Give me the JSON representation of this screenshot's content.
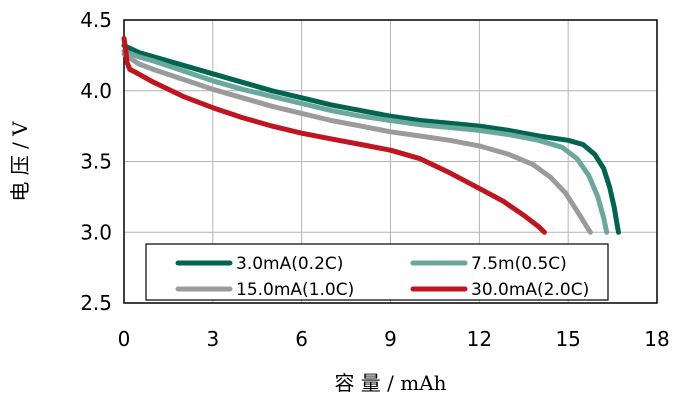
{
  "chart_data": {
    "type": "line",
    "xlabel": "容 量 / mAh",
    "ylabel": "电 压 / V",
    "xlim": [
      0,
      18
    ],
    "ylim": [
      2.5,
      4.5
    ],
    "xticks": [
      "0",
      "3",
      "6",
      "9",
      "12",
      "15",
      "18"
    ],
    "yticks": [
      "2.5",
      "3.0",
      "3.5",
      "4.0",
      "4.5"
    ],
    "grid": true,
    "legend": "bottom-inside",
    "series": [
      {
        "name": "3.0mA(0.2C)",
        "color": "#006451",
        "x": [
          0,
          0.5,
          1,
          2,
          3,
          4,
          5,
          6,
          7,
          8,
          9,
          10,
          11,
          12,
          13,
          14,
          15,
          15.5,
          15.9,
          16.2,
          16.4,
          16.55,
          16.65,
          16.7
        ],
        "y": [
          4.32,
          4.27,
          4.24,
          4.18,
          4.12,
          4.06,
          4.0,
          3.95,
          3.9,
          3.86,
          3.82,
          3.79,
          3.77,
          3.75,
          3.72,
          3.68,
          3.65,
          3.62,
          3.55,
          3.45,
          3.32,
          3.18,
          3.06,
          3.0
        ]
      },
      {
        "name": "7.5m(0.5C)",
        "color": "#6aa89b",
        "x": [
          0,
          0.5,
          1,
          2,
          3,
          4,
          5,
          6,
          7,
          8,
          9,
          10,
          11,
          12,
          13,
          14,
          14.8,
          15.3,
          15.7,
          16.0,
          16.2,
          16.3
        ],
        "y": [
          4.28,
          4.24,
          4.21,
          4.14,
          4.07,
          4.01,
          3.96,
          3.91,
          3.86,
          3.82,
          3.79,
          3.76,
          3.74,
          3.72,
          3.69,
          3.65,
          3.6,
          3.52,
          3.4,
          3.25,
          3.1,
          3.0
        ]
      },
      {
        "name": "15.0mA(1.0C)",
        "color": "#9b9b9b",
        "x": [
          0,
          0.5,
          1,
          2,
          3,
          4,
          5,
          6,
          7,
          8,
          9,
          10,
          11,
          12,
          13,
          13.8,
          14.4,
          14.9,
          15.3,
          15.6,
          15.75
        ],
        "y": [
          4.26,
          4.19,
          4.15,
          4.08,
          4.01,
          3.95,
          3.89,
          3.84,
          3.79,
          3.75,
          3.71,
          3.68,
          3.65,
          3.61,
          3.55,
          3.48,
          3.39,
          3.28,
          3.15,
          3.05,
          3.0
        ]
      },
      {
        "name": "30.0mA(2.0C)",
        "color": "#c0141f",
        "x": [
          0,
          0.05,
          0.1,
          0.2,
          0.4,
          1,
          2,
          3,
          4,
          5,
          6,
          7,
          8,
          9,
          10,
          11,
          12,
          12.8,
          13.5,
          14.0,
          14.2
        ],
        "y": [
          4.37,
          4.3,
          4.2,
          4.15,
          4.13,
          4.06,
          3.96,
          3.88,
          3.81,
          3.75,
          3.7,
          3.66,
          3.62,
          3.58,
          3.52,
          3.42,
          3.31,
          3.22,
          3.12,
          3.04,
          3.0
        ]
      }
    ]
  }
}
